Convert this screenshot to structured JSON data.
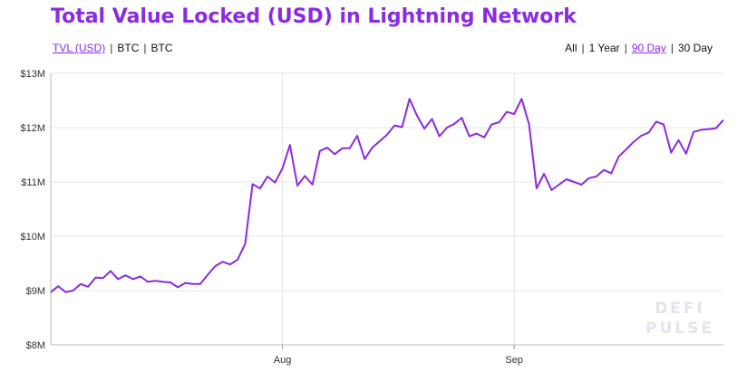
{
  "title": "Total Value Locked (USD) in Lightning Network",
  "unit_options": [
    {
      "label": "TVL (USD)",
      "active": true
    },
    {
      "label": "BTC",
      "active": false
    },
    {
      "label": "BTC",
      "active": false
    }
  ],
  "range_options": [
    {
      "label": "All",
      "active": false
    },
    {
      "label": "1 Year",
      "active": false
    },
    {
      "label": "90 Day",
      "active": true
    },
    {
      "label": "30 Day",
      "active": false
    }
  ],
  "watermark": {
    "line1": "DEFI",
    "line2": "PULSE"
  },
  "colors": {
    "line": "#8a2be2",
    "accent": "#8a2be2",
    "grid": "#e6e6e6"
  },
  "chart_data": {
    "type": "line",
    "title": "Total Value Locked (USD) in Lightning Network",
    "xlabel": "",
    "ylabel": "",
    "ylim": [
      8,
      13
    ],
    "y_ticks": [
      {
        "value": 13,
        "label": "$13M"
      },
      {
        "value": 12,
        "label": "$12M"
      },
      {
        "value": 11,
        "label": "$11M"
      },
      {
        "value": 10,
        "label": "$10M"
      },
      {
        "value": 9,
        "label": "$9M"
      },
      {
        "value": 8,
        "label": "$8M"
      }
    ],
    "x_ticks": [
      {
        "index": 31,
        "label": "Aug"
      },
      {
        "index": 62,
        "label": "Sep"
      }
    ],
    "grid": true,
    "series": [
      {
        "values": [
          8.97,
          9.08,
          8.97,
          9.0,
          9.12,
          9.07,
          9.24,
          9.23,
          9.36,
          9.21,
          9.28,
          9.21,
          9.26,
          9.16,
          9.18,
          9.16,
          9.15,
          9.06,
          9.14,
          9.12,
          9.12,
          9.29,
          9.45,
          9.53,
          9.48,
          9.57,
          9.86,
          10.96,
          10.88,
          11.1,
          10.99,
          11.25,
          11.68,
          10.93,
          11.11,
          10.95,
          11.57,
          11.63,
          11.51,
          11.62,
          11.62,
          11.85,
          11.42,
          11.63,
          11.75,
          11.87,
          12.04,
          12.01,
          12.53,
          12.22,
          11.98,
          12.16,
          11.84,
          12.0,
          12.07,
          12.18,
          11.84,
          11.89,
          11.82,
          12.06,
          12.1,
          12.29,
          12.25,
          12.53,
          12.06,
          10.88,
          11.15,
          10.85,
          10.95,
          11.05,
          11.0,
          10.95,
          11.07,
          11.1,
          11.22,
          11.16,
          11.47,
          11.6,
          11.74,
          11.85,
          11.91,
          12.11,
          12.06,
          11.54,
          11.77,
          11.52,
          11.92,
          11.96,
          11.97,
          11.99,
          12.14
        ]
      }
    ]
  }
}
